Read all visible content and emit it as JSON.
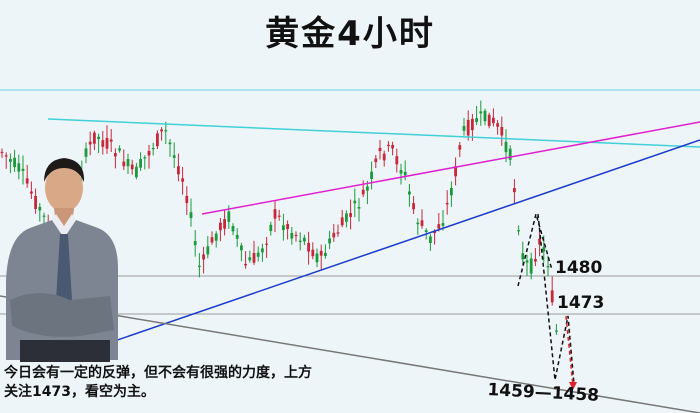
{
  "title": "黄金4小时",
  "caption": {
    "line1": "今日会有一定的反弹，但不会有很强的力度，上方",
    "line2": "关注1473，看空为主。"
  },
  "levels": {
    "l1480": "1480",
    "l1473": "1473",
    "range": "1459—1458"
  },
  "colors": {
    "background": "#eef5f9",
    "bull_candle": "#1a9a3a",
    "bear_candle": "#c8283a",
    "cyan_line": "#3fd0d8",
    "magenta_line": "#e020d0",
    "blue_line": "#1a3ccc",
    "grey_line": "#8a8a8a",
    "forecast_path": "#111111",
    "forecast_arrow": "#e0202a"
  },
  "chart_data": {
    "type": "candlestick",
    "title": "黄金4小时",
    "annotations": [
      "1480",
      "1473",
      "1459—1458"
    ],
    "y_levels_marked": [
      1480,
      1473,
      1459,
      1458
    ]
  }
}
